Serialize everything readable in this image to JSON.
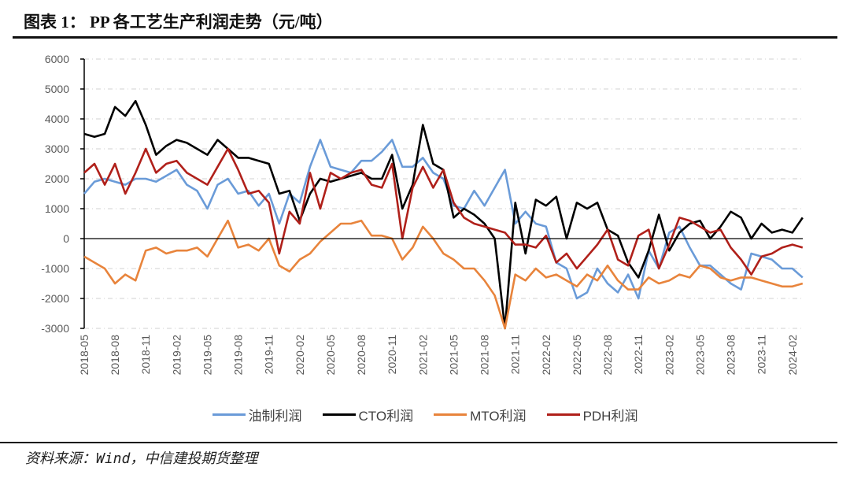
{
  "title": "图表 1：  PP 各工艺生产利润走势（元/吨）",
  "source": "资料来源：Wind，中信建投期货整理",
  "chart_data": {
    "type": "line",
    "title": "",
    "xlabel": "",
    "ylabel": "",
    "ylim": [
      -3000,
      6000
    ],
    "yticks": [
      6000,
      5000,
      4000,
      3000,
      2000,
      1000,
      0,
      -1000,
      -2000,
      -3000
    ],
    "xlim": [
      "2018-05",
      "2024-03"
    ],
    "xtick_labels": [
      "2018-05",
      "2018-08",
      "2018-11",
      "2019-02",
      "2019-05",
      "2019-08",
      "2019-11",
      "2020-02",
      "2020-05",
      "2020-08",
      "2020-11",
      "2021-02",
      "2021-05",
      "2021-08",
      "2021-11",
      "2022-02",
      "2022-05",
      "2022-08",
      "2022-11",
      "2023-02",
      "2023-05",
      "2023-08",
      "2023-11",
      "2024-02"
    ],
    "grid": "horizontal dashed",
    "legend_placement": "bottom",
    "x": [
      "2018-05",
      "2018-06",
      "2018-07",
      "2018-08",
      "2018-09",
      "2018-10",
      "2018-11",
      "2018-12",
      "2019-01",
      "2019-02",
      "2019-03",
      "2019-04",
      "2019-05",
      "2019-06",
      "2019-07",
      "2019-08",
      "2019-09",
      "2019-10",
      "2019-11",
      "2019-12",
      "2020-01",
      "2020-02",
      "2020-03",
      "2020-04",
      "2020-05",
      "2020-06",
      "2020-07",
      "2020-08",
      "2020-09",
      "2020-10",
      "2020-11",
      "2020-12",
      "2021-01",
      "2021-02",
      "2021-03",
      "2021-04",
      "2021-05",
      "2021-06",
      "2021-07",
      "2021-08",
      "2021-09",
      "2021-10",
      "2021-11",
      "2021-12",
      "2022-01",
      "2022-02",
      "2022-03",
      "2022-04",
      "2022-05",
      "2022-06",
      "2022-07",
      "2022-08",
      "2022-09",
      "2022-10",
      "2022-11",
      "2022-12",
      "2023-01",
      "2023-02",
      "2023-03",
      "2023-04",
      "2023-05",
      "2023-06",
      "2023-07",
      "2023-08",
      "2023-09",
      "2023-10",
      "2023-11",
      "2023-12",
      "2024-01",
      "2024-02",
      "2024-03"
    ],
    "series": [
      {
        "name": "油制利润",
        "color": "#6a9bd8",
        "values": [
          1500,
          1900,
          2000,
          1900,
          1800,
          2000,
          2000,
          1900,
          2100,
          2300,
          1800,
          1600,
          1000,
          1800,
          2000,
          1500,
          1600,
          1100,
          1500,
          500,
          1500,
          1200,
          2400,
          3300,
          2400,
          2300,
          2200,
          2600,
          2600,
          2900,
          3300,
          2400,
          2400,
          2700,
          2200,
          2000,
          1100,
          1000,
          1600,
          1100,
          1700,
          2300,
          500,
          900,
          500,
          400,
          -800,
          -1000,
          -2000,
          -1800,
          -1000,
          -1500,
          -1800,
          -1200,
          -2000,
          -400,
          -1000,
          200,
          400,
          -300,
          -900,
          -900,
          -1200,
          -1500,
          -1700,
          -500,
          -600,
          -700,
          -1000,
          -1000,
          -1300
        ]
      },
      {
        "name": "CTO利润",
        "color": "#000000",
        "values": [
          3500,
          3400,
          3500,
          4400,
          4100,
          4600,
          3800,
          2800,
          3100,
          3300,
          3200,
          3000,
          2800,
          3300,
          3000,
          2700,
          2700,
          2600,
          2500,
          1500,
          1600,
          600,
          1500,
          2000,
          1900,
          2000,
          2100,
          2200,
          2000,
          2000,
          2800,
          1000,
          1800,
          3800,
          2500,
          2300,
          700,
          1000,
          800,
          500,
          0,
          -3000,
          1200,
          -500,
          1300,
          1100,
          1400,
          0,
          1200,
          1000,
          1200,
          300,
          100,
          -800,
          -1300,
          -400,
          800,
          -400,
          200,
          500,
          600,
          0,
          400,
          900,
          700,
          0,
          500,
          200,
          300,
          200,
          700
        ]
      },
      {
        "name": "MTO利润",
        "color": "#e8843c",
        "values": [
          -600,
          -800,
          -1000,
          -1500,
          -1200,
          -1400,
          -400,
          -300,
          -500,
          -400,
          -400,
          -300,
          -600,
          0,
          600,
          -300,
          -200,
          -400,
          0,
          -900,
          -1100,
          -700,
          -500,
          -100,
          200,
          500,
          500,
          600,
          100,
          100,
          0,
          -700,
          -300,
          400,
          0,
          -500,
          -700,
          -1000,
          -1000,
          -1400,
          -1900,
          -3000,
          -1200,
          -1400,
          -1000,
          -1300,
          -1200,
          -1400,
          -1600,
          -1200,
          -1400,
          -900,
          -1400,
          -1700,
          -1700,
          -1300,
          -1500,
          -1400,
          -1200,
          -1300,
          -900,
          -1000,
          -1300,
          -1400,
          -1300,
          -1300,
          -1400,
          -1500,
          -1600,
          -1600,
          -1500
        ]
      },
      {
        "name": "PDH利润",
        "color": "#b0201a",
        "values": [
          2200,
          2500,
          1800,
          2500,
          1500,
          2200,
          3000,
          2200,
          2500,
          2600,
          2200,
          2000,
          1800,
          2400,
          3000,
          2300,
          1500,
          1600,
          1200,
          -500,
          900,
          500,
          2200,
          1000,
          2200,
          2000,
          2200,
          2300,
          1800,
          1700,
          2500,
          0,
          1700,
          2400,
          1700,
          2300,
          1200,
          700,
          500,
          400,
          300,
          200,
          -200,
          -200,
          -300,
          100,
          -800,
          -500,
          -1000,
          -600,
          -200,
          300,
          -700,
          -900,
          100,
          300,
          -1000,
          -200,
          700,
          600,
          400,
          200,
          300,
          -300,
          -700,
          -1200,
          -600,
          -500,
          -300,
          -200,
          -300
        ]
      }
    ]
  }
}
